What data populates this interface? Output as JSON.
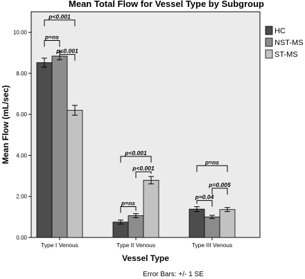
{
  "chart_data": {
    "type": "bar",
    "title": "Mean Total Flow for Vessel Type by Subgroup",
    "xlabel": "Vessel Type",
    "ylabel": "Mean Flow (mL/sec)",
    "ylim": [
      0,
      11
    ],
    "yticks": [
      "0.00",
      "2.00",
      "4.00",
      "6.00",
      "8.00",
      "10.00"
    ],
    "categories": [
      "Type I Venous",
      "Type II Venous",
      "Type III Venous"
    ],
    "series": [
      {
        "name": "HC",
        "color": "#4d4d4d",
        "values": [
          8.52,
          0.75,
          1.38
        ],
        "errors": [
          0.22,
          0.1,
          0.12
        ]
      },
      {
        "name": "NST-MS",
        "color": "#8c8c8c",
        "values": [
          8.84,
          1.06,
          1.0
        ],
        "errors": [
          0.18,
          0.1,
          0.08
        ]
      },
      {
        "name": "ST-MS",
        "color": "#c2c2c2",
        "values": [
          6.2,
          2.79,
          1.36
        ],
        "errors": [
          0.24,
          0.18,
          0.1
        ]
      }
    ],
    "legend_position": "right",
    "grid": false,
    "background": "#ebebeb",
    "annotations": [
      {
        "category": 0,
        "from": 0,
        "to": 2,
        "level": 10.6,
        "label": "p<0.001"
      },
      {
        "category": 0,
        "from": 0,
        "to": 1,
        "level": 9.6,
        "label": "p=ns"
      },
      {
        "category": 0,
        "from": 1,
        "to": 2,
        "level": 8.92,
        "label": "p<0.001"
      },
      {
        "category": 1,
        "from": 0,
        "to": 2,
        "level": 3.95,
        "label": "p<0.001"
      },
      {
        "category": 1,
        "from": 1,
        "to": 2,
        "level": 3.2,
        "label": "p<0.001"
      },
      {
        "category": 1,
        "from": 0,
        "to": 1,
        "level": 1.5,
        "label": "p=ns"
      },
      {
        "category": 2,
        "from": 0,
        "to": 2,
        "level": 3.5,
        "label": "p=ns"
      },
      {
        "category": 2,
        "from": 1,
        "to": 2,
        "level": 2.4,
        "label": "p=0.005"
      },
      {
        "category": 2,
        "from": 0,
        "to": 1,
        "level": 1.8,
        "label": "p=0.04"
      }
    ],
    "footnote": "Error Bars: +/- 1 SE"
  }
}
